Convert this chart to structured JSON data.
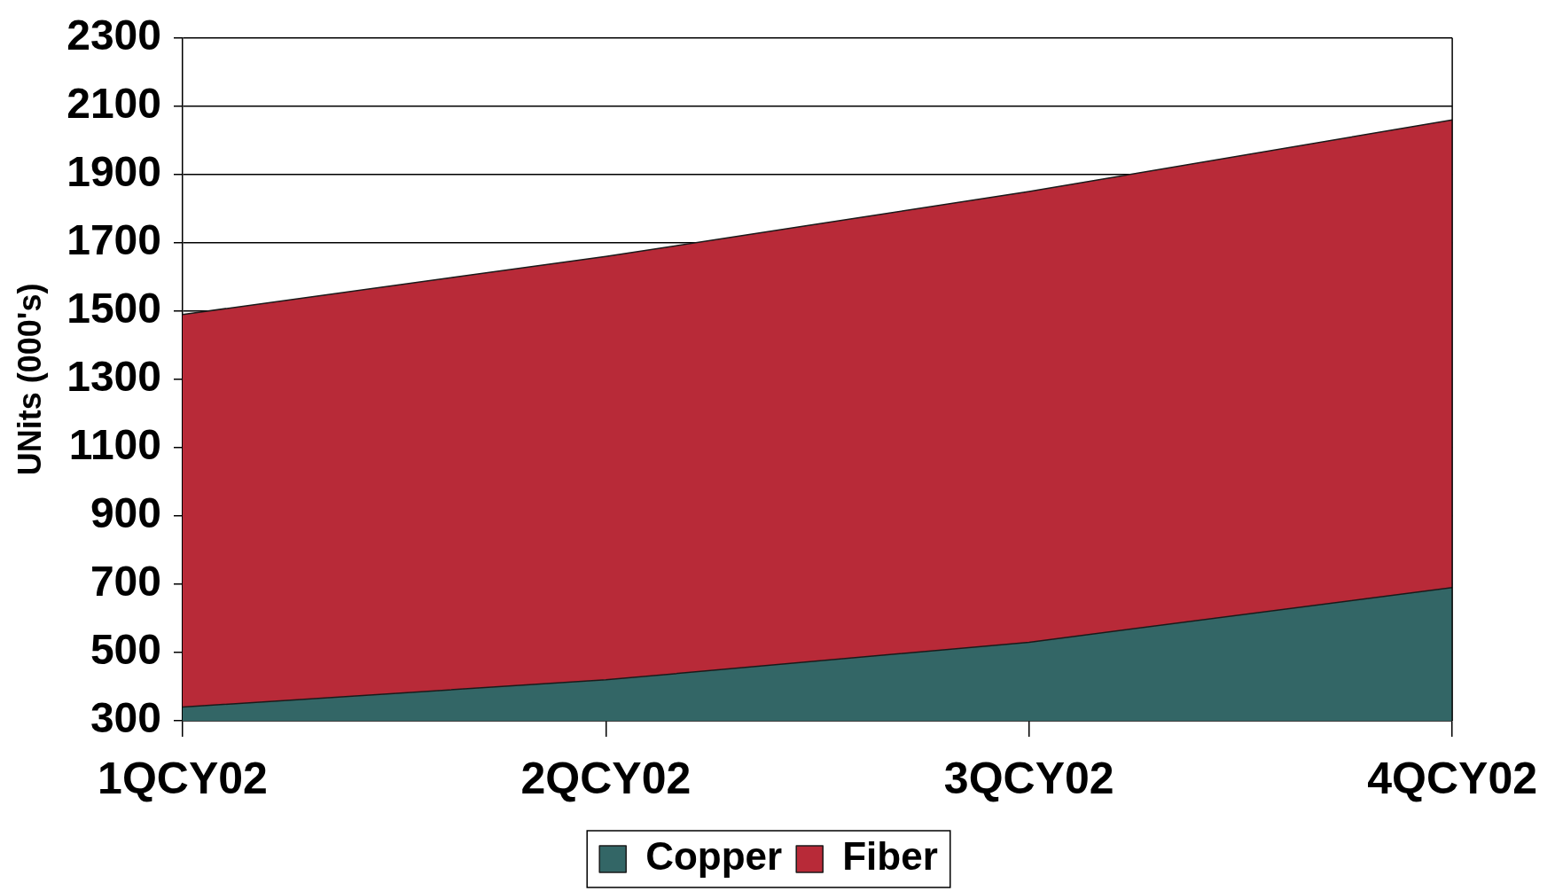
{
  "chart_data": {
    "type": "area",
    "stacked": true,
    "ylabel": "UNits (000's)",
    "categories": [
      "1QCY02",
      "2QCY02",
      "3QCY02",
      "4QCY02"
    ],
    "series": [
      {
        "name": "Copper",
        "color": "#336666",
        "values": [
          340,
          420,
          530,
          690
        ]
      },
      {
        "name": "Fiber",
        "color": "#b82a38",
        "values": [
          1150,
          1240,
          1320,
          1370
        ]
      }
    ],
    "ylim": [
      300,
      2300
    ],
    "yticks": [
      300,
      500,
      700,
      900,
      1100,
      1300,
      1500,
      1700,
      1900,
      2100,
      2300
    ],
    "grid": "y",
    "legend": "bottom"
  }
}
